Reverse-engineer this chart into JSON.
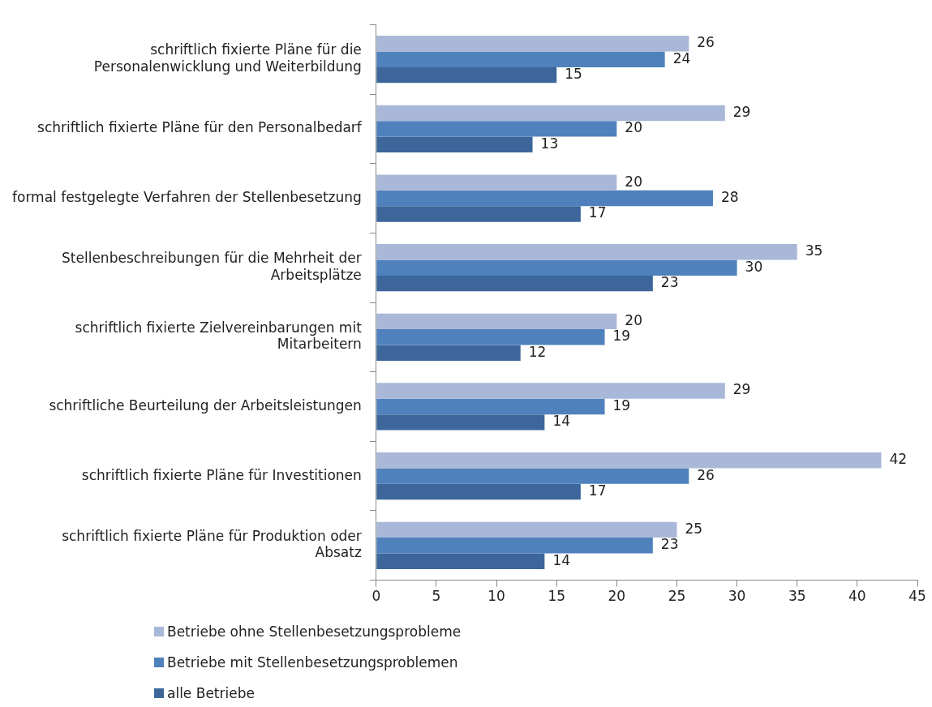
{
  "chart_data": {
    "type": "bar",
    "orientation": "horizontal",
    "categories": [
      "schriftlich fixierte Pläne für die Personalenwicklung und Weiterbildung",
      "schriftlich fixierte Pläne für den Personalbedarf",
      "formal festgelegte Verfahren der Stellenbesetzung",
      "Stellenbeschreibungen für die Mehrheit der Arbeitsplätze",
      "schriftlich fixierte Zielvereinbarungen mit Mitarbeitern",
      "schriftliche Beurteilung der Arbeitsleistungen",
      "schriftlich fixierte Pläne für Investitionen",
      "schriftlich fixierte Pläne für Produktion oder Absatz"
    ],
    "series": [
      {
        "name": "Betriebe ohne Stellenbesetzungsprobleme",
        "color": "#a9b8d8",
        "values": [
          26,
          29,
          20,
          35,
          20,
          29,
          42,
          25
        ]
      },
      {
        "name": "Betriebe mit Stellenbesetzungsproblemen",
        "color": "#4f81bd",
        "values": [
          24,
          20,
          28,
          30,
          19,
          19,
          26,
          23
        ]
      },
      {
        "name": "alle Betriebe",
        "color": "#3d679b",
        "values": [
          15,
          13,
          17,
          23,
          12,
          14,
          17,
          14
        ]
      }
    ],
    "xlim": [
      0,
      45
    ],
    "xticks": [
      0,
      5,
      10,
      15,
      20,
      25,
      30,
      35,
      40,
      45
    ],
    "data_labels": true,
    "grid": false,
    "legend": "bottom left"
  }
}
